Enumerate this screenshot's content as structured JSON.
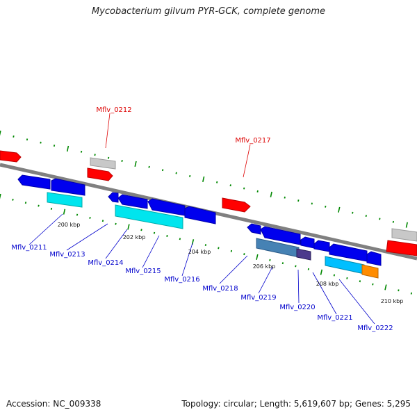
{
  "title": "Mycobacterium gilvum PYR-GCK, complete genome",
  "footer": {
    "accession": "Accession: NC_009338",
    "summary": "Topology: circular; Length: 5,619,607 bp; Genes: 5,295"
  },
  "colors": {
    "forward_cds": "#ff0000",
    "reverse_cds": "#0000ee",
    "cyan_feature": "#00e5ee",
    "grey_feature": "#c8c8c8",
    "steel_feature": "#4682b4",
    "orange_feature": "#ff8c00",
    "tick_marks": "#008800",
    "backbone": "#808080",
    "forward_label": "#dd0000",
    "reverse_label": "#0000cc"
  },
  "scale": [
    "200 kbp",
    "202 kbp",
    "204 kbp",
    "206 kbp",
    "208 kbp",
    "210 kbp"
  ],
  "labels": {
    "forward": [
      "Mflv_0212",
      "Mflv_0217"
    ],
    "reverse": [
      "Mflv_0211",
      "Mflv_0213",
      "Mflv_0214",
      "Mflv_0215",
      "Mflv_0216",
      "Mflv_0218",
      "Mflv_0219",
      "Mflv_0220",
      "Mflv_0221",
      "Mflv_0222"
    ]
  }
}
